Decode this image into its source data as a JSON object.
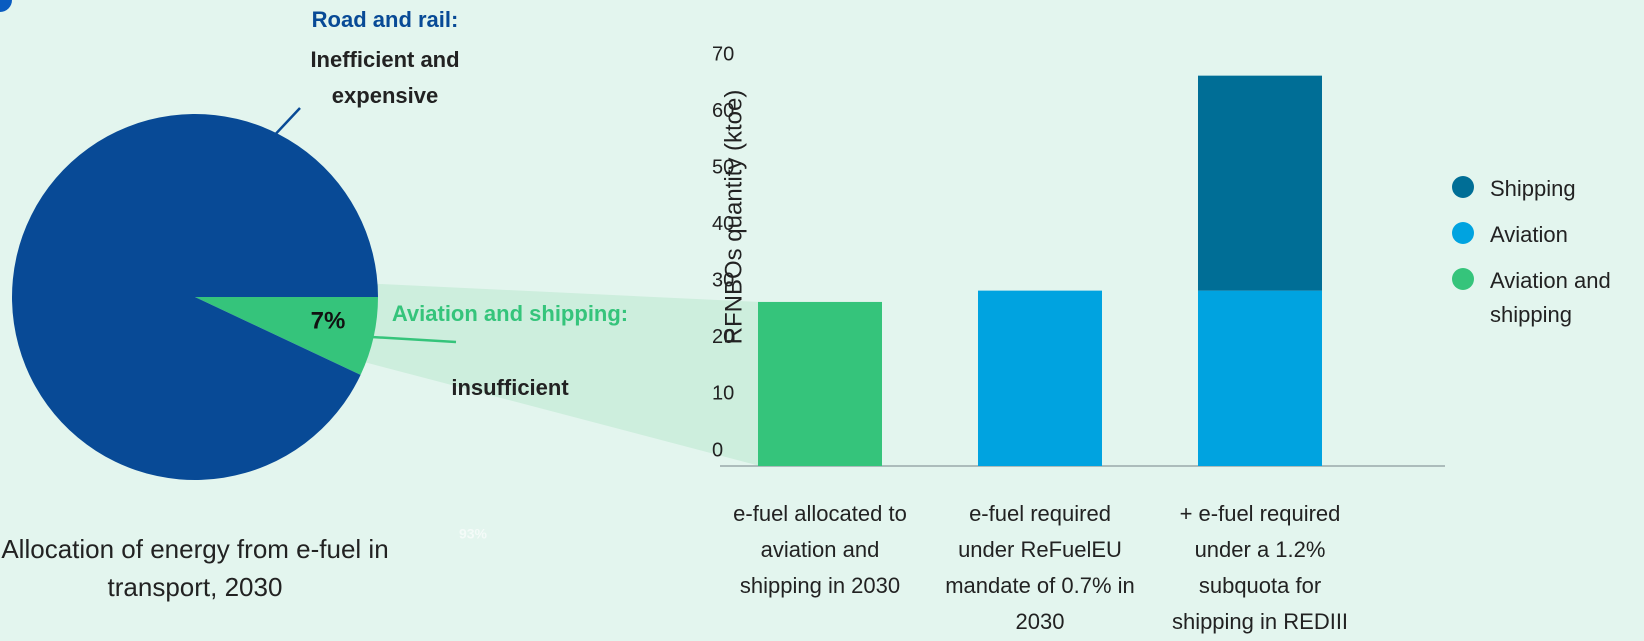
{
  "chart_data": [
    {
      "type": "pie",
      "title": "Allocation of energy from e-fuel in transport, 2030",
      "categories": [
        "Road and rail:",
        "Aviation and shipping:"
      ],
      "descriptions": [
        "Inefficient and expensive",
        "insufficient"
      ],
      "values": [
        93,
        7
      ],
      "value_labels": [
        "93%",
        "7%"
      ],
      "colors": [
        "#084a96",
        "#35c47b"
      ]
    },
    {
      "type": "bar",
      "stacked": true,
      "ylabel": "RFNBOs quantity (ktoe)",
      "categories": [
        "e-fuel allocated to aviation and shipping in 2030",
        "e-fuel required under ReFuelEU mandate of 0.7% in 2030",
        "+ e-fuel required under a 1.2% subquota for shipping in REDIII"
      ],
      "series": [
        {
          "name": "Shipping",
          "color": "#006e96",
          "values": [
            null,
            null,
            38
          ]
        },
        {
          "name": "Aviation",
          "color": "#00a3e0",
          "values": [
            null,
            31,
            31
          ]
        },
        {
          "name": "Aviation and shipping",
          "color": "#35c47b",
          "values": [
            29,
            null,
            null
          ]
        }
      ],
      "ylim": [
        0,
        70
      ],
      "yticks": [
        0,
        10,
        20,
        30,
        40,
        50,
        60,
        70
      ]
    }
  ]
}
